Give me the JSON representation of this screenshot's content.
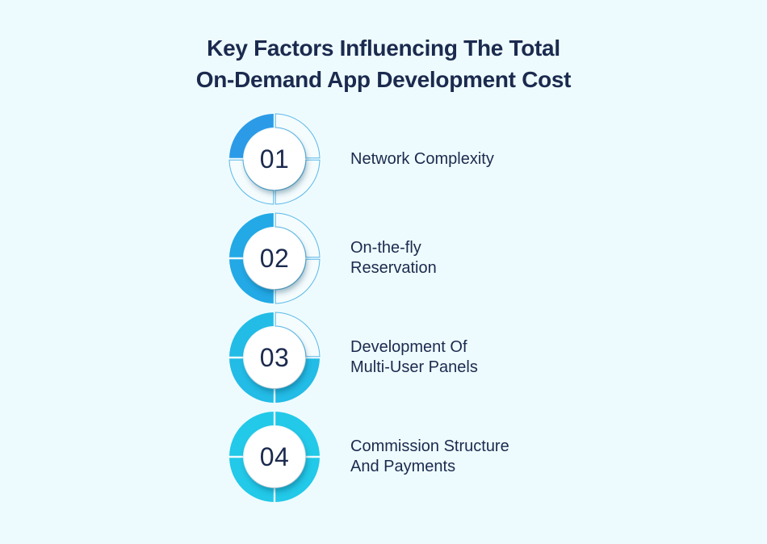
{
  "title": {
    "line1": "Key Factors Influencing The Total",
    "line2": "On-Demand App Development Cost"
  },
  "colors": {
    "background": "#eefbfe",
    "text": "#1b2a4e",
    "ring_01": "#2b9be8",
    "ring_02": "#22a9e6",
    "ring_03": "#22bce6",
    "ring_04": "#22c9e8",
    "empty_segment_stroke": "#5ab8e8"
  },
  "factors": [
    {
      "number": "01",
      "label_line1": "Network Complexity",
      "label_line2": "",
      "filled_quarters": 1
    },
    {
      "number": "02",
      "label_line1": "On-the-fly",
      "label_line2": "Reservation",
      "filled_quarters": 2
    },
    {
      "number": "03",
      "label_line1": "Development Of",
      "label_line2": "Multi-User Panels",
      "filled_quarters": 3
    },
    {
      "number": "04",
      "label_line1": "Commission Structure",
      "label_line2": "And Payments",
      "filled_quarters": 4
    }
  ]
}
